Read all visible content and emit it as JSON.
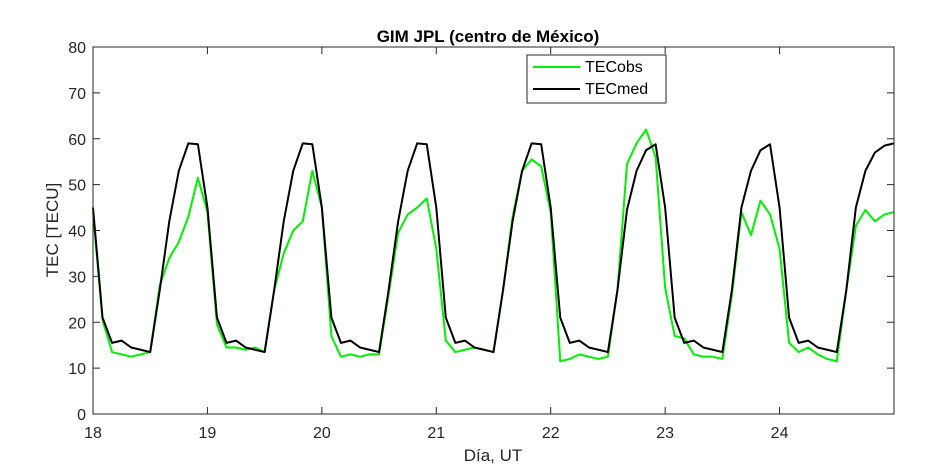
{
  "chart_data": {
    "type": "line",
    "title": "GIM JPL (centro de México)",
    "xlabel": "Día, UT",
    "ylabel": "TEC [TECU]",
    "xlim": [
      18,
      25
    ],
    "ylim": [
      0,
      80
    ],
    "xticks": [
      18,
      19,
      20,
      21,
      22,
      23,
      24
    ],
    "xtick_labels": [
      "18",
      "19",
      "20",
      "21",
      "22",
      "23",
      "24"
    ],
    "yticks": [
      0,
      10,
      20,
      30,
      40,
      50,
      60,
      70,
      80
    ],
    "ytick_labels": [
      "0",
      "10",
      "20",
      "30",
      "40",
      "50",
      "60",
      "70",
      "80"
    ],
    "grid": false,
    "legend_position": "top-right",
    "colors": {
      "TECobs": "#00ee00",
      "TECmed": "#000000",
      "axes": "#262626"
    },
    "series": [
      {
        "name": "TECobs",
        "color": "#00ee00",
        "x": [
          18,
          18.0833,
          18.1667,
          18.25,
          18.3333,
          18.4167,
          18.5,
          18.5833,
          18.6667,
          18.75,
          18.8333,
          18.9167,
          19,
          19.0833,
          19.1667,
          19.25,
          19.3333,
          19.4167,
          19.5,
          19.5833,
          19.6667,
          19.75,
          19.8333,
          19.9167,
          20,
          20.0833,
          20.1667,
          20.25,
          20.3333,
          20.4167,
          20.5,
          20.5833,
          20.6667,
          20.75,
          20.8333,
          20.9167,
          21,
          21.0833,
          21.1667,
          21.25,
          21.3333,
          21.4167,
          21.5,
          21.5833,
          21.6667,
          21.75,
          21.8333,
          21.9167,
          22,
          22.0833,
          22.1667,
          22.25,
          22.3333,
          22.4167,
          22.5,
          22.5833,
          22.6667,
          22.75,
          22.8333,
          22.9167,
          23,
          23.0833,
          23.1667,
          23.25,
          23.3333,
          23.4167,
          23.5,
          23.5833,
          23.6667,
          23.75,
          23.8333,
          23.9167,
          24,
          24.0833,
          24.1667,
          24.25,
          24.3333,
          24.4167,
          24.5,
          24.5833,
          24.6667,
          24.75,
          24.8333,
          24.9167,
          25
        ],
        "values": [
          44,
          20.5,
          13.5,
          13,
          12.5,
          13,
          13.5,
          28,
          34,
          37.5,
          43,
          51.5,
          44,
          19.5,
          14.5,
          14.5,
          14,
          14.5,
          13.5,
          27,
          35,
          40,
          42,
          53,
          45,
          17,
          12.5,
          13,
          12.5,
          13,
          13,
          26,
          39.5,
          43.5,
          45,
          47,
          36,
          16,
          13.5,
          14,
          14.5,
          14,
          13.5,
          27,
          43,
          53,
          55.5,
          54,
          44,
          11.5,
          12,
          13,
          12.5,
          12,
          12.5,
          27,
          54.5,
          59,
          62,
          56,
          27.5,
          17,
          16.5,
          13,
          12.5,
          12.5,
          12,
          26,
          44,
          39,
          46.5,
          43.5,
          36,
          15.5,
          13.5,
          14.5,
          13,
          12,
          11.5,
          27,
          41,
          44.5,
          42,
          43.5,
          44
        ]
      },
      {
        "name": "TECmed",
        "color": "#000000",
        "x": [
          18,
          18.0833,
          18.1667,
          18.25,
          18.3333,
          18.4167,
          18.5,
          18.5833,
          18.6667,
          18.75,
          18.8333,
          18.9167,
          19,
          19.0833,
          19.1667,
          19.25,
          19.3333,
          19.4167,
          19.5,
          19.5833,
          19.6667,
          19.75,
          19.8333,
          19.9167,
          20,
          20.0833,
          20.1667,
          20.25,
          20.3333,
          20.4167,
          20.5,
          20.5833,
          20.6667,
          20.75,
          20.8333,
          20.9167,
          21,
          21.0833,
          21.1667,
          21.25,
          21.3333,
          21.4167,
          21.5,
          21.5833,
          21.6667,
          21.75,
          21.8333,
          21.9167,
          22,
          22.0833,
          22.1667,
          22.25,
          22.3333,
          22.4167,
          22.5,
          22.5833,
          22.6667,
          22.75,
          22.8333,
          22.9167,
          23,
          23.0833,
          23.1667,
          23.25,
          23.3333,
          23.4167,
          23.5,
          23.5833,
          23.6667,
          23.75,
          23.8333,
          23.9167,
          24,
          24.0833,
          24.1667,
          24.25,
          24.3333,
          24.4167,
          24.5,
          24.5833,
          24.6667,
          24.75,
          24.8333,
          24.9167,
          25
        ],
        "values": [
          45,
          21,
          15.5,
          16,
          14.5,
          14,
          13.5,
          27,
          42,
          53,
          59,
          58.8,
          45,
          21,
          15.5,
          16,
          14.5,
          14,
          13.5,
          27,
          42,
          53,
          59,
          58.8,
          45,
          21,
          15.5,
          16,
          14.5,
          14,
          13.5,
          27,
          42,
          53,
          59,
          58.8,
          45,
          21,
          15.5,
          16,
          14.5,
          14,
          13.5,
          27,
          42,
          53,
          59,
          58.8,
          45,
          21,
          15.5,
          16,
          14.5,
          14,
          13.5,
          27,
          44.5,
          53,
          57.5,
          58.8,
          45,
          21,
          15.5,
          16,
          14.5,
          14,
          13.5,
          27,
          45,
          53,
          57.5,
          58.8,
          45,
          21,
          15.5,
          16,
          14.5,
          14,
          13.5,
          27,
          45,
          53,
          57,
          58.5,
          59
        ]
      }
    ]
  }
}
